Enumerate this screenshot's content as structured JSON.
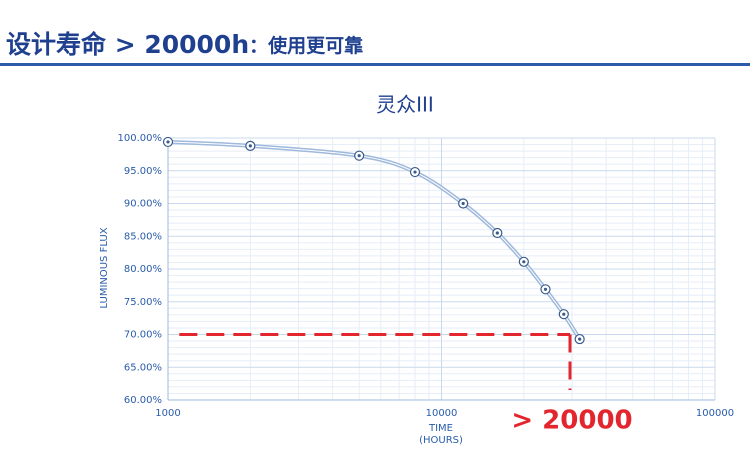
{
  "header": {
    "title": "设计寿命 > 20000h",
    "subtitle": "：使用更可靠"
  },
  "chart_data": {
    "type": "line",
    "title": "灵众III",
    "y_label": "LUMINOUS FLUX",
    "x_label": [
      "TIME",
      "(HOURS)"
    ],
    "x": [
      1000,
      2000,
      5000,
      8000,
      12000,
      16000,
      20000,
      24000,
      28000,
      32000
    ],
    "values": [
      99.4,
      98.8,
      97.3,
      94.8,
      90.0,
      85.5,
      81.1,
      76.9,
      73.1,
      69.3
    ],
    "color": "#3a5a8a",
    "line_color": "#9fb9dc",
    "xlim": [
      1000,
      100000
    ],
    "xticks": [
      1000,
      10000,
      100000
    ],
    "x_log": true,
    "ylim": [
      60,
      100
    ],
    "yticks": [
      {
        "value": 60,
        "label": "60.00%"
      },
      {
        "value": 65,
        "label": "65.00%"
      },
      {
        "value": 70,
        "label": "70.00%"
      },
      {
        "value": 75,
        "label": "75.00%"
      },
      {
        "value": 80,
        "label": "80.00%"
      },
      {
        "value": 85,
        "label": "85.00%"
      },
      {
        "value": 90,
        "label": "90.00%"
      },
      {
        "value": 95,
        "label": "95.00%"
      },
      {
        "value": 100,
        "label": "100.00%"
      }
    ],
    "grid": true,
    "minor_grid": true,
    "reference_line": {
      "y": 70,
      "x_start": 1100,
      "x_end": 29500,
      "color": "#e3262e"
    },
    "annotation": "> 20000"
  }
}
